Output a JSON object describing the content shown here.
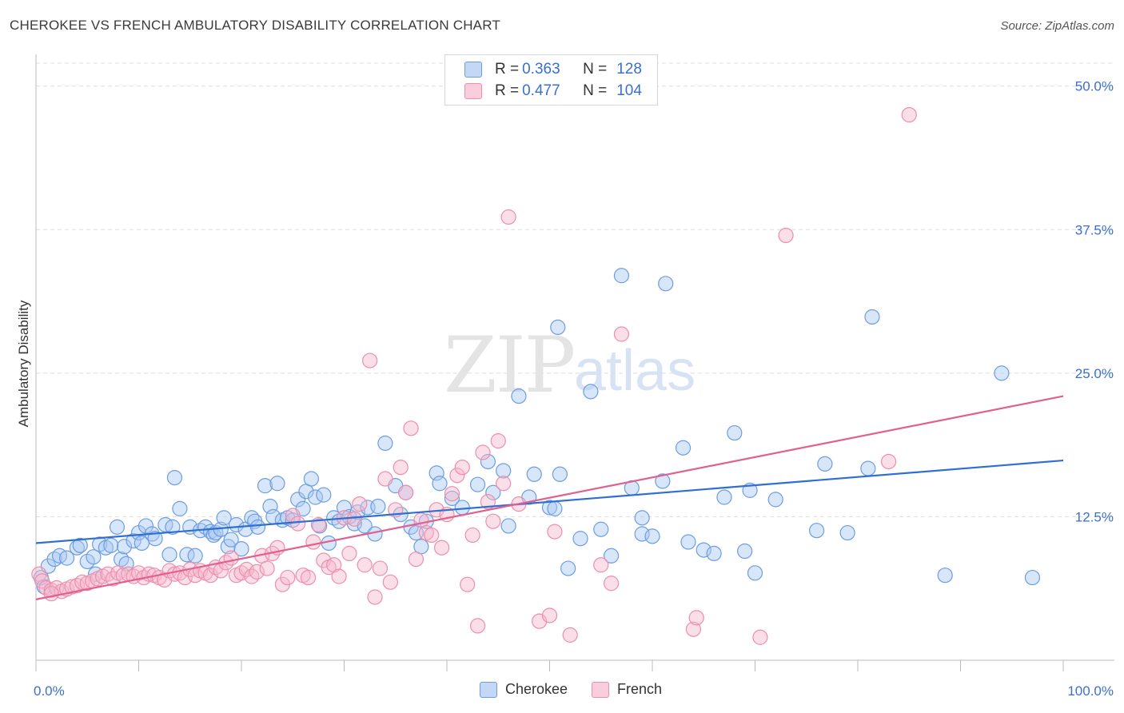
{
  "header": {
    "title": "CHEROKEE VS FRENCH AMBULATORY DISABILITY CORRELATION CHART",
    "source": "Source: ZipAtlas.com"
  },
  "watermark": {
    "zip": "ZIP",
    "atlas": "atlas"
  },
  "legend_top": {
    "rows": [
      {
        "r_label": "R = ",
        "r_value": "0.363",
        "n_label": "N = ",
        "n_value": "128"
      },
      {
        "r_label": "R = ",
        "r_value": "0.477",
        "n_label": "N = ",
        "n_value": "104"
      }
    ]
  },
  "colors": {
    "cherokee_fill": "#a9c7f2",
    "cherokee_stroke": "#6d9de0",
    "cherokee_line": "#2f6fd1",
    "french_fill": "#f7b9cc",
    "french_stroke": "#ec8eac",
    "french_line": "#e0608f",
    "axis_text": "#3a6fd0"
  },
  "chart_data": {
    "type": "scatter",
    "title": "CHEROKEE VS FRENCH AMBULATORY DISABILITY CORRELATION CHART",
    "xlabel": "",
    "ylabel": "Ambulatory Disability",
    "xlim": [
      0,
      100
    ],
    "ylim": [
      0,
      52
    ],
    "x_tick_labels": [
      "0.0%",
      "100.0%"
    ],
    "y_ticks": [
      12.5,
      25.0,
      37.5,
      50.0
    ],
    "y_tick_labels": [
      "12.5%",
      "25.0%",
      "37.5%",
      "50.0%"
    ],
    "grid": true,
    "legend_position": "top-center",
    "series": [
      {
        "name": "Cherokee",
        "r": 0.363,
        "n": 128,
        "trend": [
          [
            0,
            10.2
          ],
          [
            100,
            17.4
          ]
        ],
        "points": [
          [
            0.5,
            7.2
          ],
          [
            1.2,
            8.2
          ],
          [
            1.8,
            8.8
          ],
          [
            2.3,
            9.1
          ],
          [
            3,
            8.9
          ],
          [
            4,
            9.8
          ],
          [
            4.3,
            10
          ],
          [
            5,
            8.6
          ],
          [
            5.6,
            9
          ],
          [
            5.8,
            7.5
          ],
          [
            6.2,
            10.1
          ],
          [
            6.8,
            9.8
          ],
          [
            7.3,
            10
          ],
          [
            7.9,
            11.6
          ],
          [
            8.3,
            8.8
          ],
          [
            8.6,
            9.9
          ],
          [
            8.8,
            8.4
          ],
          [
            9.5,
            10.4
          ],
          [
            10,
            11.1
          ],
          [
            10.3,
            10.2
          ],
          [
            10.7,
            11.7
          ],
          [
            11.3,
            11
          ],
          [
            11.6,
            10.6
          ],
          [
            12.6,
            11.8
          ],
          [
            13,
            9.2
          ],
          [
            13.3,
            11.6
          ],
          [
            13.5,
            15.9
          ],
          [
            14,
            13.2
          ],
          [
            14.7,
            9.2
          ],
          [
            15,
            11.6
          ],
          [
            15.5,
            9.1
          ],
          [
            16,
            11.3
          ],
          [
            16.5,
            11.6
          ],
          [
            17,
            11.2
          ],
          [
            17.3,
            10.9
          ],
          [
            17.5,
            11.1
          ],
          [
            18,
            11.4
          ],
          [
            18.3,
            12.4
          ],
          [
            18.7,
            9.9
          ],
          [
            19,
            10.5
          ],
          [
            19.5,
            11.8
          ],
          [
            20,
            9.7
          ],
          [
            20.4,
            11.4
          ],
          [
            21,
            12.4
          ],
          [
            21.3,
            12.1
          ],
          [
            21.6,
            11.6
          ],
          [
            22.3,
            15.2
          ],
          [
            22.8,
            13.4
          ],
          [
            23.1,
            12.5
          ],
          [
            23.5,
            15.4
          ],
          [
            24,
            12.2
          ],
          [
            24.5,
            12.4
          ],
          [
            25,
            12.2
          ],
          [
            25.5,
            14
          ],
          [
            26,
            13.2
          ],
          [
            26.3,
            14.7
          ],
          [
            26.8,
            15.8
          ],
          [
            27.2,
            14.2
          ],
          [
            27.6,
            11.7
          ],
          [
            28,
            14.4
          ],
          [
            28.5,
            10.2
          ],
          [
            29,
            12.4
          ],
          [
            29.5,
            12.1
          ],
          [
            30,
            13.3
          ],
          [
            30.5,
            12.5
          ],
          [
            31,
            11.9
          ],
          [
            31.3,
            12.9
          ],
          [
            32,
            11.7
          ],
          [
            32.3,
            13.3
          ],
          [
            33,
            11
          ],
          [
            33.3,
            13.4
          ],
          [
            34,
            18.9
          ],
          [
            35,
            15.2
          ],
          [
            35.5,
            12.7
          ],
          [
            36,
            14.6
          ],
          [
            36.5,
            11.6
          ],
          [
            37,
            11.1
          ],
          [
            37.5,
            9.9
          ],
          [
            38,
            12.1
          ],
          [
            39,
            16.3
          ],
          [
            39.3,
            15.4
          ],
          [
            40.5,
            14.1
          ],
          [
            41.5,
            13.3
          ],
          [
            43,
            15.3
          ],
          [
            44,
            17.3
          ],
          [
            44.5,
            14.6
          ],
          [
            45.5,
            16.5
          ],
          [
            46,
            11.7
          ],
          [
            47,
            23
          ],
          [
            48,
            14.2
          ],
          [
            48.5,
            16.2
          ],
          [
            50,
            13.3
          ],
          [
            50.5,
            13.2
          ],
          [
            51,
            16.2
          ],
          [
            50.8,
            29
          ],
          [
            51.8,
            8
          ],
          [
            53,
            10.6
          ],
          [
            54,
            23.4
          ],
          [
            55,
            11.4
          ],
          [
            56,
            9.1
          ],
          [
            57,
            33.5
          ],
          [
            58,
            15
          ],
          [
            59,
            11
          ],
          [
            59,
            12.4
          ],
          [
            60,
            10.8
          ],
          [
            61,
            15.6
          ],
          [
            61.3,
            32.8
          ],
          [
            63,
            18.5
          ],
          [
            63.5,
            10.3
          ],
          [
            65,
            9.6
          ],
          [
            66,
            9.3
          ],
          [
            67,
            14.2
          ],
          [
            68,
            19.8
          ],
          [
            69,
            9.5
          ],
          [
            69.5,
            14.8
          ],
          [
            70,
            7.6
          ],
          [
            72,
            14
          ],
          [
            76,
            11.3
          ],
          [
            76.8,
            17.1
          ],
          [
            79,
            11.1
          ],
          [
            81,
            16.7
          ],
          [
            81.4,
            29.9
          ],
          [
            88.5,
            7.4
          ],
          [
            94,
            25
          ],
          [
            97,
            7.2
          ],
          [
            0.8,
            6.4
          ]
        ]
      },
      {
        "name": "French",
        "r": 0.477,
        "n": 104,
        "trend": [
          [
            0,
            5.3
          ],
          [
            100,
            23.0
          ]
        ],
        "points": [
          [
            0.3,
            7.5
          ],
          [
            0.6,
            6.9
          ],
          [
            1,
            6.3
          ],
          [
            1.5,
            6.1
          ],
          [
            2,
            6.3
          ],
          [
            2.5,
            6
          ],
          [
            3,
            6.2
          ],
          [
            3.5,
            6.4
          ],
          [
            4,
            6.5
          ],
          [
            4.5,
            6.8
          ],
          [
            5,
            6.7
          ],
          [
            5.5,
            6.9
          ],
          [
            6,
            7.1
          ],
          [
            6.5,
            7.3
          ],
          [
            7,
            7.5
          ],
          [
            7.5,
            7.1
          ],
          [
            8,
            7.6
          ],
          [
            8.5,
            7.4
          ],
          [
            9,
            7.5
          ],
          [
            9.5,
            7.3
          ],
          [
            10,
            7.6
          ],
          [
            10.5,
            7.2
          ],
          [
            11,
            7.5
          ],
          [
            11.5,
            7.4
          ],
          [
            12,
            7.2
          ],
          [
            12.5,
            7.0
          ],
          [
            13,
            7.8
          ],
          [
            13.5,
            7.5
          ],
          [
            14,
            7.6
          ],
          [
            14.5,
            7.2
          ],
          [
            15,
            7.9
          ],
          [
            15.5,
            7.4
          ],
          [
            16,
            7.8
          ],
          [
            16.5,
            7.6
          ],
          [
            17,
            7.4
          ],
          [
            17.5,
            8.1
          ],
          [
            18,
            7.8
          ],
          [
            18.5,
            8.5
          ],
          [
            19,
            8.9
          ],
          [
            19.5,
            7.4
          ],
          [
            20,
            7.6
          ],
          [
            20.5,
            7.9
          ],
          [
            21,
            7.3
          ],
          [
            21.5,
            7.7
          ],
          [
            22,
            9.1
          ],
          [
            22.5,
            8
          ],
          [
            23,
            9.3
          ],
          [
            23.5,
            9.8
          ],
          [
            24,
            6.6
          ],
          [
            24.5,
            7.2
          ],
          [
            25,
            12.6
          ],
          [
            25.5,
            11.9
          ],
          [
            26,
            7.4
          ],
          [
            26.5,
            7.2
          ],
          [
            27,
            10.3
          ],
          [
            27.5,
            11.8
          ],
          [
            28,
            8.7
          ],
          [
            28.5,
            8.1
          ],
          [
            29,
            8.3
          ],
          [
            29.5,
            7.3
          ],
          [
            30,
            12.4
          ],
          [
            30.5,
            9.3
          ],
          [
            31,
            12.3
          ],
          [
            31.5,
            13.6
          ],
          [
            32,
            8.3
          ],
          [
            32.5,
            26.1
          ],
          [
            33,
            5.5
          ],
          [
            33.5,
            8
          ],
          [
            34,
            15.8
          ],
          [
            34.5,
            6.8
          ],
          [
            35,
            13.1
          ],
          [
            35.5,
            16.8
          ],
          [
            36,
            14.6
          ],
          [
            36.5,
            20.2
          ],
          [
            37,
            8.8
          ],
          [
            37.5,
            12.2
          ],
          [
            38,
            11.1
          ],
          [
            38.5,
            10.9
          ],
          [
            39,
            13.1
          ],
          [
            39.5,
            9.8
          ],
          [
            40,
            12.7
          ],
          [
            40.5,
            14.5
          ],
          [
            41,
            16.1
          ],
          [
            41.5,
            16.8
          ],
          [
            42,
            6.6
          ],
          [
            42.5,
            10.9
          ],
          [
            43,
            3
          ],
          [
            43.5,
            18.1
          ],
          [
            44,
            13.8
          ],
          [
            44.5,
            12.1
          ],
          [
            45,
            19.1
          ],
          [
            45.5,
            15.4
          ],
          [
            46,
            38.6
          ],
          [
            47,
            13.6
          ],
          [
            49,
            3.4
          ],
          [
            50,
            3.9
          ],
          [
            50.5,
            11.2
          ],
          [
            52,
            2.2
          ],
          [
            55,
            8.3
          ],
          [
            56,
            6.7
          ],
          [
            57,
            28.4
          ],
          [
            64,
            2.7
          ],
          [
            64.3,
            3.7
          ],
          [
            70.5,
            2
          ],
          [
            73,
            37
          ],
          [
            83,
            17.3
          ],
          [
            85,
            47.5
          ],
          [
            1.5,
            5.8
          ]
        ]
      }
    ]
  },
  "bottom_legend": {
    "items": [
      {
        "label": "Cherokee"
      },
      {
        "label": "French"
      }
    ]
  }
}
